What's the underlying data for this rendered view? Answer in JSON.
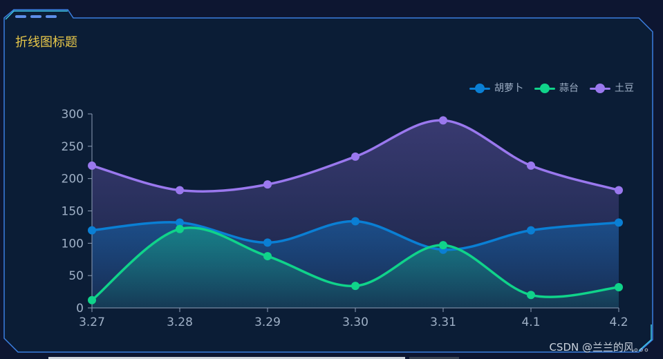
{
  "panel": {
    "title": "折线图标题"
  },
  "watermark": "CSDN @兰兰的风。。。",
  "colors": {
    "frame": "#3b7fe0",
    "title": "#e8c84a",
    "axis": "#8f9fb8",
    "text": "#9fb0c6"
  },
  "chart_data": {
    "type": "line",
    "title": "",
    "xlabel": "",
    "ylabel": "",
    "categories": [
      "3.27",
      "3.28",
      "3.29",
      "3.30",
      "3.31",
      "4.1",
      "4.2"
    ],
    "ylim": [
      0,
      300
    ],
    "yticks": [
      "0",
      "50",
      "100",
      "150",
      "200",
      "250",
      "300"
    ],
    "smooth": true,
    "area": true,
    "grid": false,
    "legend_position": "top-right",
    "series": [
      {
        "name": "胡萝卜",
        "color": "#0a7fd4",
        "values": [
          120,
          132,
          101,
          134,
          90,
          120,
          132
        ]
      },
      {
        "name": "蒜台",
        "color": "#10d38a",
        "values": [
          12,
          122,
          80,
          34,
          97,
          20,
          32
        ]
      },
      {
        "name": "土豆",
        "color": "#9a78ee",
        "values": [
          220,
          182,
          191,
          234,
          290,
          220,
          182
        ]
      }
    ]
  }
}
